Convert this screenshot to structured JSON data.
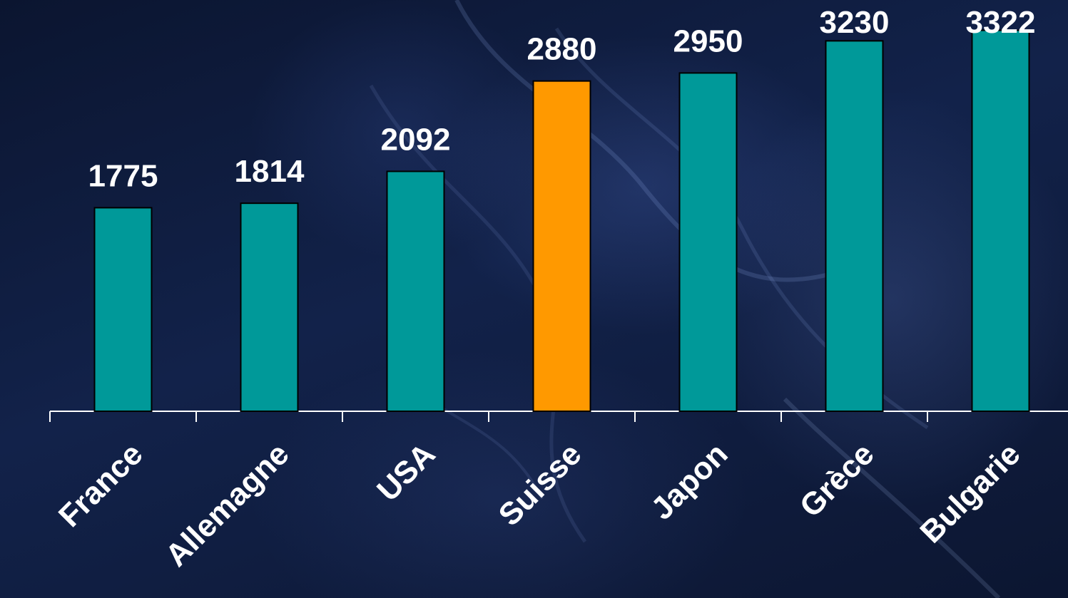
{
  "chart_data": {
    "type": "bar",
    "categories": [
      "France",
      "Allemagne",
      "USA",
      "Suisse",
      "Japon",
      "Grèce",
      "Bulgarie"
    ],
    "values": [
      1775,
      1814,
      2092,
      2880,
      2950,
      3230,
      3322
    ],
    "highlight": "Suisse",
    "colors": {
      "bar": "#009999",
      "highlight": "#ff9900",
      "axis": "#ffffff",
      "text": "#ffffff"
    },
    "ylim": [
      0,
      3400
    ],
    "grid": false,
    "legend": "none"
  }
}
